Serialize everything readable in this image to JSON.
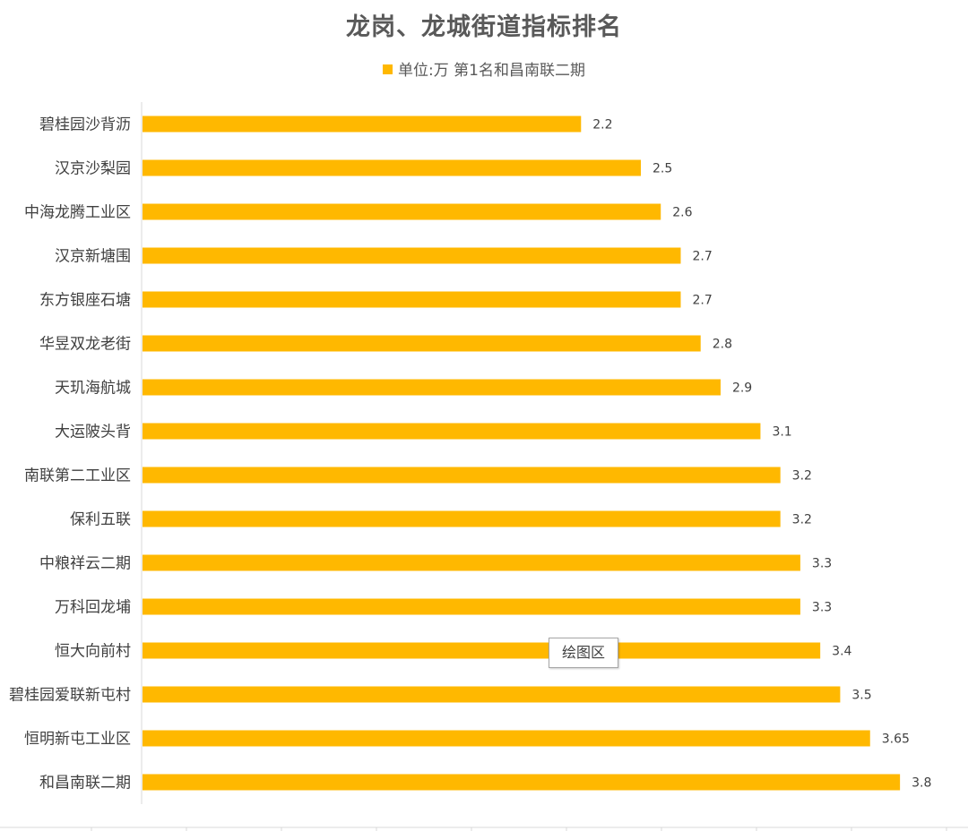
{
  "chart_data": {
    "type": "bar",
    "orientation": "horizontal",
    "title": "龙岗、龙城街道指标排名",
    "legend": {
      "label": "单位:万 第1名和昌南联二期",
      "position": "top"
    },
    "categories": [
      "碧桂园沙背沥",
      "汉京沙梨园",
      "中海龙腾工业区",
      "汉京新塘围",
      "东方银座石塘",
      "华昱双龙老街",
      "天玑海航城",
      "大运陂头背",
      "南联第二工业区",
      "保利五联",
      "中粮祥云二期",
      "万科回龙埔",
      "恒大向前村",
      "碧桂园爱联新屯村",
      "恒明新屯工业区",
      "和昌南联二期"
    ],
    "values": [
      2.2,
      2.5,
      2.6,
      2.7,
      2.7,
      2.8,
      2.9,
      3.1,
      3.2,
      3.2,
      3.3,
      3.3,
      3.4,
      3.5,
      3.65,
      3.8
    ],
    "value_labels": [
      "2.2",
      "2.5",
      "2.6",
      "2.7",
      "2.7",
      "2.8",
      "2.9",
      "3.1",
      "3.2",
      "3.2",
      "3.3",
      "3.3",
      "3.4",
      "3.5",
      "3.65",
      "3.8"
    ],
    "xlim": [
      0,
      4
    ],
    "grid": false,
    "data_labels": true
  },
  "tooltip": {
    "text": "绘图区"
  },
  "colors": {
    "bar": "#FFB800",
    "text": "#404040",
    "title": "#595959",
    "axis": "#d9d9d9"
  }
}
